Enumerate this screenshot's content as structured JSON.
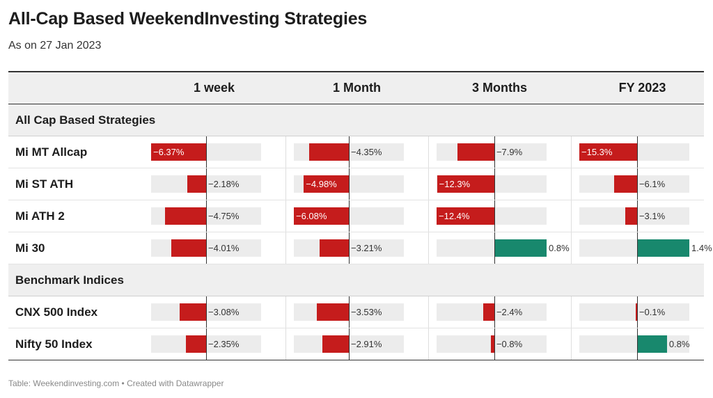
{
  "title": "All-Cap Based WeekendInvesting Strategies",
  "subtitle": "As on 27 Jan 2023",
  "footer": "Table: Weekendinvesting.com • Created with Datawrapper",
  "colors": {
    "negative": "#c51c1c",
    "positive": "#18886d",
    "track": "#ececec"
  },
  "chart_data": {
    "type": "table",
    "columns": [
      "1 week",
      "1 Month",
      "3 Months",
      "FY 2023"
    ],
    "column_scales": [
      {
        "min": -6.37,
        "max": 0
      },
      {
        "min": -6.08,
        "max": 0
      },
      {
        "min": -12.4,
        "max": 0.8
      },
      {
        "min": -15.3,
        "max": 1.4
      }
    ],
    "groups": [
      {
        "name": "All Cap Based Strategies",
        "rows": [
          {
            "label": "Mi MT Allcap",
            "values": [
              -6.37,
              -4.35,
              -7.9,
              -15.3
            ],
            "texts": [
              "−6.37%",
              "−4.35%",
              "−7.9%",
              "−15.3%"
            ]
          },
          {
            "label": "Mi ST ATH",
            "values": [
              -2.18,
              -4.98,
              -12.3,
              -6.1
            ],
            "texts": [
              "−2.18%",
              "−4.98%",
              "−12.3%",
              "−6.1%"
            ]
          },
          {
            "label": "Mi ATH 2",
            "values": [
              -4.75,
              -6.08,
              -12.4,
              -3.1
            ],
            "texts": [
              "−4.75%",
              "−6.08%",
              "−12.4%",
              "−3.1%"
            ]
          },
          {
            "label": "Mi 30",
            "values": [
              -4.01,
              -3.21,
              0.8,
              1.4
            ],
            "texts": [
              "−4.01%",
              "−3.21%",
              "0.8%",
              "1.4%"
            ]
          }
        ]
      },
      {
        "name": "Benchmark Indices",
        "rows": [
          {
            "label": "CNX 500 Index",
            "values": [
              -3.08,
              -3.53,
              -2.4,
              -0.1
            ],
            "texts": [
              "−3.08%",
              "−3.53%",
              "−2.4%",
              "−0.1%"
            ]
          },
          {
            "label": "Nifty 50 Index",
            "values": [
              -2.35,
              -2.91,
              -0.8,
              0.8
            ],
            "texts": [
              "−2.35%",
              "−2.91%",
              "−0.8%",
              "0.8%"
            ]
          }
        ]
      }
    ]
  }
}
